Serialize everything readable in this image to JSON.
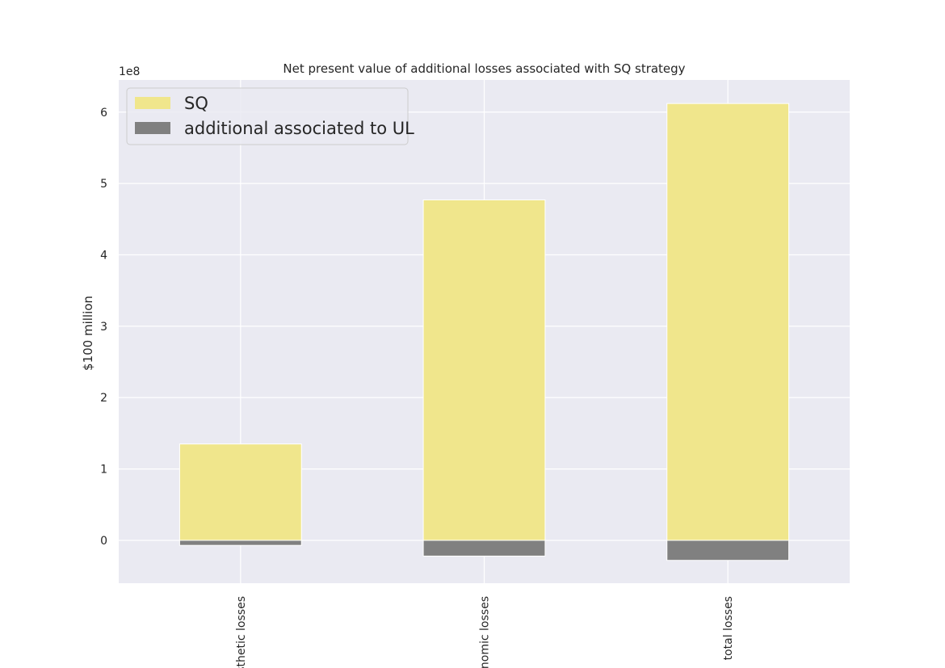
{
  "chart_data": {
    "type": "bar",
    "stacked": true,
    "title": "Net present value of additional losses associated with SQ strategy",
    "xlabel": "",
    "ylabel": "$100 million",
    "y_offset_label": "1e8",
    "y_scale": 100000000,
    "categories": [
      "aesthetic losses",
      "economic losses",
      "total losses"
    ],
    "category_labels_shown": [
      "sthetic losses",
      "nomic losses",
      "total losses"
    ],
    "series": [
      {
        "name": "SQ",
        "color": "#f0e68c",
        "values": [
          135000000,
          477000000,
          612000000
        ]
      },
      {
        "name": "additional associated to UL",
        "color": "#808080",
        "values": [
          -7000000,
          -22000000,
          -28000000
        ]
      }
    ],
    "ylim": [
      -60000000,
      645000000
    ],
    "yticks": [
      0,
      100000000,
      200000000,
      300000000,
      400000000,
      500000000,
      600000000
    ],
    "ytick_labels": [
      "0",
      "1",
      "2",
      "3",
      "4",
      "5",
      "6"
    ],
    "grid": true,
    "legend_position": "upper-left",
    "colors": {
      "background": "#eaeaf2",
      "grid": "#ffffff",
      "text": "#262626"
    }
  }
}
